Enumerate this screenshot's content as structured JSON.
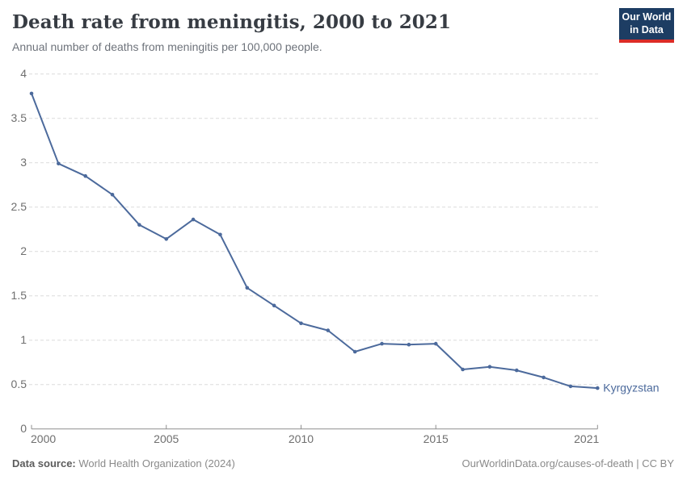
{
  "header": {
    "title": "Death rate from meningitis, 2000 to 2021",
    "subtitle": "Annual number of deaths from meningitis per 100,000 people."
  },
  "logo": {
    "line1": "Our World",
    "line2": "in Data",
    "bg_color": "#1d3d63",
    "accent_color": "#dc2c27"
  },
  "chart_data": {
    "type": "line",
    "title": "Death rate from meningitis, 2000 to 2021",
    "subtitle": "Annual number of deaths from meningitis per 100,000 people.",
    "x": [
      2000,
      2001,
      2002,
      2003,
      2004,
      2005,
      2006,
      2007,
      2008,
      2009,
      2010,
      2011,
      2012,
      2013,
      2014,
      2015,
      2016,
      2017,
      2018,
      2019,
      2020,
      2021
    ],
    "series": [
      {
        "name": "Kyrgyzstan",
        "color": "#4c6a9c",
        "values": [
          3.78,
          2.99,
          2.85,
          2.64,
          2.3,
          2.14,
          2.36,
          2.19,
          1.59,
          1.39,
          1.19,
          1.11,
          0.87,
          0.96,
          0.95,
          0.96,
          0.67,
          0.7,
          0.66,
          0.58,
          0.48,
          0.46
        ]
      }
    ],
    "xlabel": "",
    "ylabel": "",
    "ylim": [
      0,
      4
    ],
    "xlim": [
      2000,
      2021
    ],
    "yticks": [
      0,
      0.5,
      1,
      1.5,
      2,
      2.5,
      3,
      3.5,
      4
    ],
    "ytick_labels": [
      "0",
      "0.5",
      "1",
      "1.5",
      "2",
      "2.5",
      "3",
      "3.5",
      "4"
    ],
    "xticks": [
      2000,
      2005,
      2010,
      2015,
      2021
    ],
    "xtick_labels": [
      "2000",
      "2005",
      "2010",
      "2015",
      "2021"
    ],
    "grid": "horizontal-dashed",
    "legend_position": "line-end-label",
    "line_color": "#4c6a9c",
    "grid_color": "#dcdcdc",
    "axis_color": "#8f8f8f"
  },
  "footer": {
    "source_label": "Data source:",
    "source_value": " World Health Organization (2024)",
    "credit": "OurWorldinData.org/causes-of-death | CC BY"
  }
}
